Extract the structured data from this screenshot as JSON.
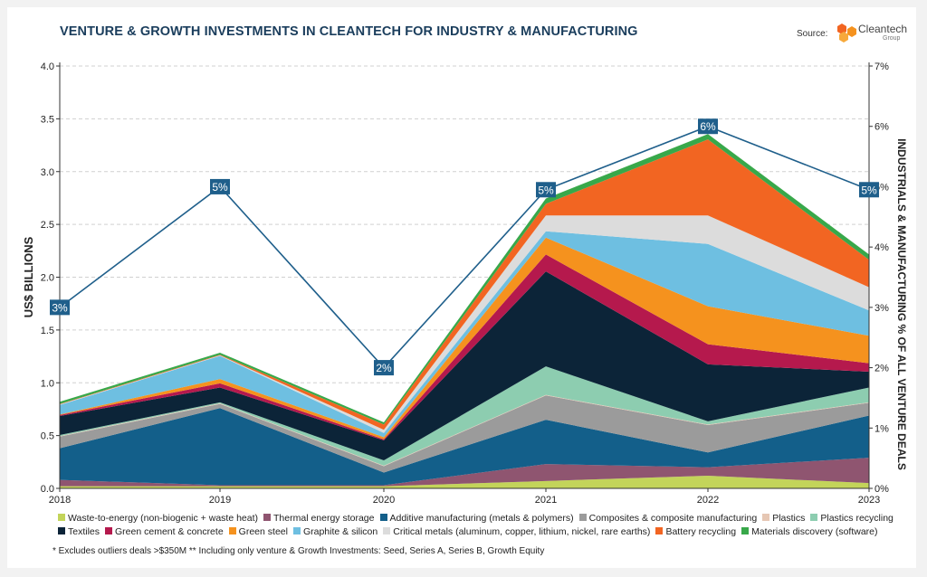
{
  "header": {
    "title": "VENTURE & GROWTH INVESTMENTS IN CLEANTECH FOR INDUSTRY & MANUFACTURING",
    "source_label": "Source:",
    "logo_name": "Cleantech",
    "logo_sub": "Group"
  },
  "footnote": "* Excludes outliers deals >$350M  ** Including only venture & Growth Investments: Seed, Series A, Series B, Growth Equity",
  "chart_data": {
    "type": "area",
    "stacked": true,
    "x": [
      "2018",
      "2019",
      "2020",
      "2021",
      "2022",
      "2023"
    ],
    "ylabel": "US$ BILLIONS",
    "ylim": [
      0,
      4.0
    ],
    "yticks": [
      "0.0",
      "0.5",
      "1.0",
      "1.5",
      "2.0",
      "2.5",
      "3.0",
      "3.5",
      "4.0"
    ],
    "y2label": "INDUSTRIALS & MANUFACTURING % OF ALL VENTURE DEALS",
    "y2lim": [
      0,
      7
    ],
    "y2ticks": [
      "0%",
      "1%",
      "2%",
      "3%",
      "4%",
      "5%",
      "6%",
      "7%"
    ],
    "grid": true,
    "legend_position": "bottom",
    "series": [
      {
        "name": "Waste-to-energy (non-biogenic + waste heat)",
        "color": "#c3d45a",
        "values": [
          0.02,
          0.02,
          0.02,
          0.07,
          0.12,
          0.05
        ]
      },
      {
        "name": "Thermal energy storage",
        "color": "#8f5570",
        "values": [
          0.06,
          0.01,
          0.01,
          0.16,
          0.08,
          0.24
        ]
      },
      {
        "name": "Additive manufacturing (metals & polymers)",
        "color": "#135f8a",
        "values": [
          0.3,
          0.73,
          0.12,
          0.42,
          0.14,
          0.4
        ]
      },
      {
        "name": "Composites & composite manufacturing",
        "color": "#9b9b9b",
        "values": [
          0.11,
          0.04,
          0.06,
          0.23,
          0.26,
          0.12
        ]
      },
      {
        "name": "Plastics",
        "color": "#e6c7b4",
        "values": [
          0.005,
          0.005,
          0.005,
          0.005,
          0.005,
          0.005
        ]
      },
      {
        "name": "Plastics recycling",
        "color": "#8dcdb0",
        "values": [
          0.01,
          0.01,
          0.05,
          0.27,
          0.03,
          0.14
        ]
      },
      {
        "name": "Textiles",
        "color": "#0c2438",
        "values": [
          0.18,
          0.14,
          0.19,
          0.9,
          0.54,
          0.15
        ]
      },
      {
        "name": "Green cement & concrete",
        "color": "#b5194d",
        "values": [
          0.01,
          0.04,
          0.01,
          0.16,
          0.19,
          0.08
        ]
      },
      {
        "name": "Green steel",
        "color": "#f5921e",
        "values": [
          0.005,
          0.04,
          0.02,
          0.16,
          0.36,
          0.26
        ]
      },
      {
        "name": "Graphite & silicon",
        "color": "#6ebfe1",
        "values": [
          0.09,
          0.22,
          0.04,
          0.06,
          0.59,
          0.24
        ]
      },
      {
        "name": "Critical metals (aluminum, copper, lithium, nickel, rare earths)",
        "color": "#dcdcdc",
        "values": [
          0.005,
          0.005,
          0.03,
          0.15,
          0.27,
          0.22
        ]
      },
      {
        "name": "Battery recycling",
        "color": "#f26522",
        "values": [
          0.005,
          0.005,
          0.05,
          0.11,
          0.72,
          0.26
        ]
      },
      {
        "name": "Materials discovery (software)",
        "color": "#38a84a",
        "values": [
          0.02,
          0.02,
          0.02,
          0.05,
          0.05,
          0.05
        ]
      }
    ],
    "line": {
      "name": "INDUSTRIALS & MANUFACTURING % OF ALL VENTURE DEALS",
      "color": "#1f5f8b",
      "values": [
        3,
        5,
        2,
        5,
        6,
        5
      ],
      "plotted_values": [
        3.0,
        5.0,
        2.0,
        4.95,
        6.0,
        4.95
      ],
      "labels": [
        "3%",
        "5%",
        "2%",
        "5%",
        "6%",
        "5%"
      ]
    }
  }
}
